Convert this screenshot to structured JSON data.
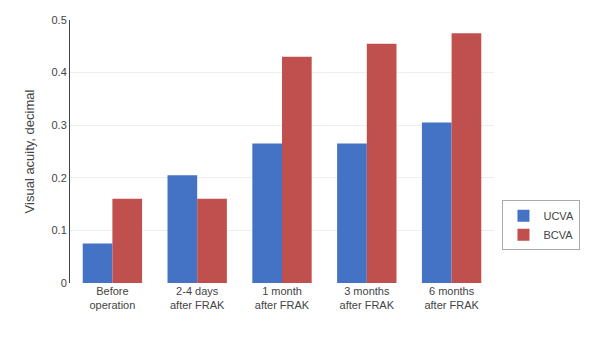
{
  "chart_data": {
    "type": "bar",
    "categories": [
      "Before\noperation",
      "2-4 days\nafter FRAK",
      "1 month\nafter FRAK",
      "3 months\nafter FRAK",
      "6 months\nafter FRAK"
    ],
    "series": [
      {
        "name": "UCVA",
        "color": "#4472C4",
        "values": [
          0.075,
          0.205,
          0.265,
          0.265,
          0.305
        ]
      },
      {
        "name": "BCVA",
        "color": "#C0504D",
        "values": [
          0.16,
          0.16,
          0.43,
          0.455,
          0.475
        ]
      }
    ],
    "ylabel": "Visual acuity, decimal",
    "ylim": [
      0,
      0.5
    ],
    "yticks": [
      0,
      0.1,
      0.2,
      0.3,
      0.4,
      0.5
    ],
    "grid": true,
    "legend": "lower right"
  }
}
